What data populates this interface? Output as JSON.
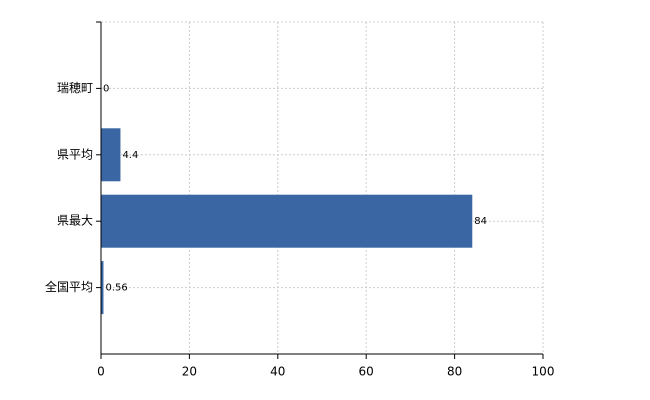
{
  "chart_data": {
    "type": "hbar",
    "categories": [
      "瑞穂町",
      "県平均",
      "県最大",
      "全国平均"
    ],
    "values": [
      0,
      4.4,
      84,
      0.56
    ],
    "color": "#3a67a4",
    "xlim": [
      0,
      100
    ],
    "xticks": [
      0,
      20,
      40,
      60,
      80,
      100
    ],
    "grid": true
  }
}
